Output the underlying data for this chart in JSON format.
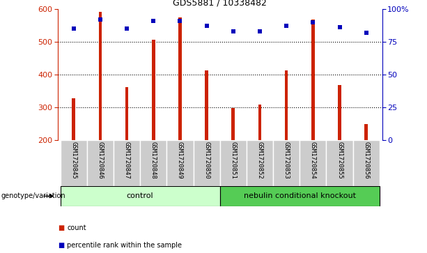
{
  "title": "GDS5881 / 10338482",
  "samples": [
    "GSM1720845",
    "GSM1720846",
    "GSM1720847",
    "GSM1720848",
    "GSM1720849",
    "GSM1720850",
    "GSM1720851",
    "GSM1720852",
    "GSM1720853",
    "GSM1720854",
    "GSM1720855",
    "GSM1720856"
  ],
  "counts": [
    328,
    590,
    362,
    507,
    575,
    413,
    298,
    310,
    413,
    568,
    368,
    250
  ],
  "percentiles": [
    85,
    92,
    85,
    91,
    91,
    87,
    83,
    83,
    87,
    90,
    86,
    82
  ],
  "ylim_left": [
    200,
    600
  ],
  "ylim_right": [
    0,
    100
  ],
  "yticks_left": [
    200,
    300,
    400,
    500,
    600
  ],
  "yticks_right": [
    0,
    25,
    50,
    75,
    100
  ],
  "bar_color": "#cc2200",
  "dot_color": "#0000bb",
  "grid_color": "#000000",
  "n_control": 6,
  "n_ko": 6,
  "control_label": "control",
  "ko_label": "nebulin conditional knockout",
  "control_bg": "#ccffcc",
  "ko_bg": "#55cc55",
  "xticklabel_bg": "#cccccc",
  "legend_count_color": "#cc2200",
  "legend_dot_color": "#0000bb",
  "legend_count_label": "count",
  "legend_percentile_label": "percentile rank within the sample",
  "genotype_label": "genotype/variation"
}
